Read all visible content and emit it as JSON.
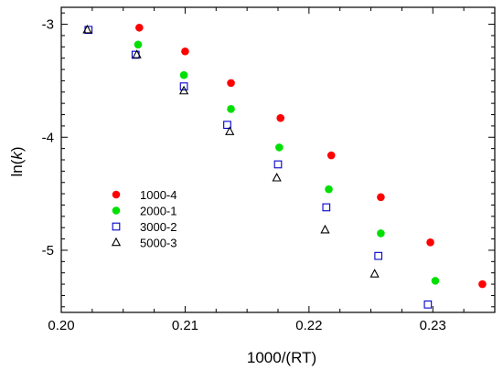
{
  "chart_data": {
    "type": "scatter",
    "xlabel_prefix": "1000/(RT)",
    "ylabel_prefix": "ln(",
    "ylabel_var": "k",
    "ylabel_suffix": ")",
    "xlim": [
      0.2,
      0.235
    ],
    "ylim": [
      -5.55,
      -2.85
    ],
    "xticks": [
      0.2,
      0.21,
      0.22,
      0.23
    ],
    "xtick_labels": [
      "0.20",
      "0.21",
      "0.22",
      "0.23"
    ],
    "yticks": [
      -3,
      -4,
      -5
    ],
    "ytick_labels": [
      "-3",
      "-4",
      "-5"
    ],
    "grid": false,
    "legend_position": "center-left",
    "series": [
      {
        "name": "1000-4",
        "marker": "filled-circle",
        "color": "#ff0000",
        "x": [
          0.2063,
          0.21,
          0.2137,
          0.2177,
          0.2218,
          0.2258,
          0.2298,
          0.234
        ],
        "y": [
          -3.03,
          -3.24,
          -3.52,
          -3.83,
          -4.16,
          -4.53,
          -4.93,
          -5.3
        ]
      },
      {
        "name": "2000-1",
        "marker": "filled-circle",
        "color": "#00e000",
        "x": [
          0.2062,
          0.2099,
          0.2137,
          0.2176,
          0.2216,
          0.2258,
          0.2302
        ],
        "y": [
          -3.18,
          -3.45,
          -3.75,
          -4.09,
          -4.46,
          -4.85,
          -5.27
        ]
      },
      {
        "name": "3000-2",
        "marker": "open-square",
        "color": "#0000cc",
        "x": [
          0.2022,
          0.206,
          0.2099,
          0.2134,
          0.2175,
          0.2214,
          0.2256,
          0.2296
        ],
        "y": [
          -3.05,
          -3.27,
          -3.55,
          -3.89,
          -4.24,
          -4.62,
          -5.05,
          -5.48
        ]
      },
      {
        "name": "5000-3",
        "marker": "open-triangle",
        "color": "#000000",
        "x": [
          0.2021,
          0.2061,
          0.2099,
          0.2136,
          0.2174,
          0.2213,
          0.2253
        ],
        "y": [
          -3.05,
          -3.27,
          -3.59,
          -3.95,
          -4.36,
          -4.82,
          -5.21
        ]
      }
    ]
  }
}
